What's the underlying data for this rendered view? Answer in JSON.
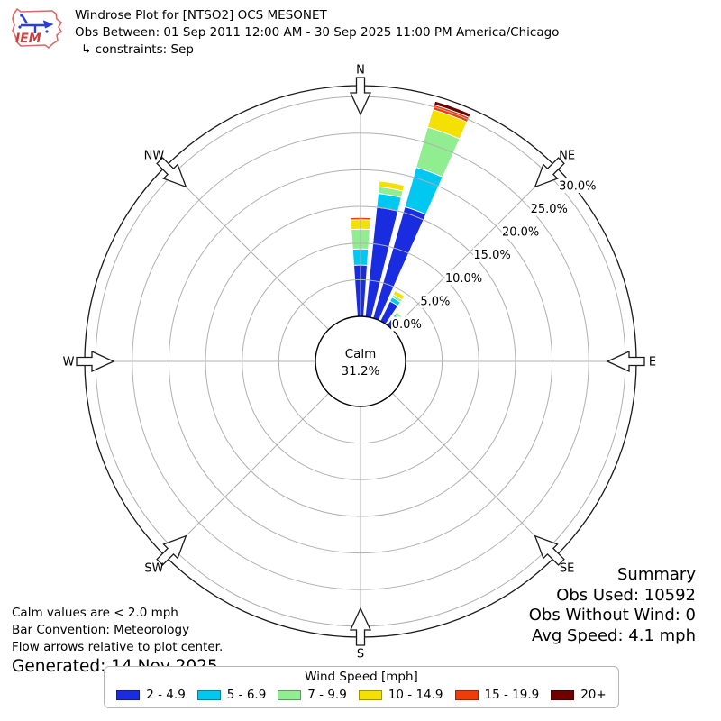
{
  "header": {
    "title": "Windrose Plot for [NTSO2] OCS MESONET",
    "subtitle": "Obs Between: 01 Sep 2011 12:00 AM - 30 Sep 2025 11:00 PM America/Chicago",
    "constraints": "↳ constraints: Sep",
    "logo_text": "IEM"
  },
  "chart_data": {
    "type": "windrose-stacked-polar-bar",
    "title": "Windrose Plot for [NTSO2] OCS MESONET",
    "units": "percent frequency by wind speed bin [mph]",
    "calm_label": "Calm",
    "calm_value": "31.2%",
    "calm_pct": 31.2,
    "ring_ticks_pct": [
      0,
      5,
      10,
      15,
      20,
      25,
      30
    ],
    "ring_tick_labels": [
      "0.0%",
      "5.0%",
      "10.0%",
      "15.0%",
      "20.0%",
      "25.0%",
      "30.0%"
    ],
    "rmax_pct": 31.5,
    "grid_color": "#b0b0b0",
    "compass": [
      {
        "label": "N",
        "angle_deg": 0
      },
      {
        "label": "NE",
        "angle_deg": 45
      },
      {
        "label": "E",
        "angle_deg": 90
      },
      {
        "label": "SE",
        "angle_deg": 135
      },
      {
        "label": "S",
        "angle_deg": 180
      },
      {
        "label": "SW",
        "angle_deg": 225
      },
      {
        "label": "W",
        "angle_deg": 270
      },
      {
        "label": "NW",
        "angle_deg": 315
      }
    ],
    "sector_width_deg": 10,
    "bar_opening_deg": 8,
    "speed_bins": [
      {
        "label": "2 - 4.9",
        "color": "#1a2cdf"
      },
      {
        "label": "5 - 6.9",
        "color": "#00c8f0"
      },
      {
        "label": "7 - 9.9",
        "color": "#90ee90"
      },
      {
        "label": "10 - 14.9",
        "color": "#f5e003"
      },
      {
        "label": "15 - 19.9",
        "color": "#f03c08"
      },
      {
        "label": "20+",
        "color": "#6e0000"
      }
    ],
    "bars": [
      {
        "direction_deg": 0,
        "values": [
          7.0,
          2.2,
          2.7,
          1.3,
          0.3,
          0
        ],
        "total_pct": 13.5
      },
      {
        "direction_deg": 10,
        "values": [
          15.0,
          1.9,
          0.9,
          0.8,
          0,
          0
        ],
        "total_pct": 18.6
      },
      {
        "direction_deg": 20,
        "values": [
          15.8,
          5.6,
          5.7,
          2.5,
          0.7,
          0.5
        ],
        "total_pct": 30.8
      },
      {
        "direction_deg": 30,
        "values": [
          3.0,
          0.6,
          0.4,
          0.6,
          0,
          0
        ],
        "total_pct": 4.6
      },
      {
        "direction_deg": 40,
        "values": [
          1.2,
          0.6,
          0.4,
          0,
          0,
          0
        ],
        "total_pct": 2.2
      }
    ]
  },
  "summary": {
    "title": "Summary",
    "obs_used": "Obs Used: 10592",
    "obs_without": "Obs Without Wind: 0",
    "avg_speed": "Avg Speed: 4.1 mph"
  },
  "notes": {
    "calm": "Calm values are < 2.0 mph",
    "convention": "Bar Convention: Meteorology",
    "arrows": "Flow arrows relative to plot center.",
    "generated": "Generated: 14 Nov 2025"
  },
  "legend": {
    "title": "Wind Speed [mph]"
  }
}
